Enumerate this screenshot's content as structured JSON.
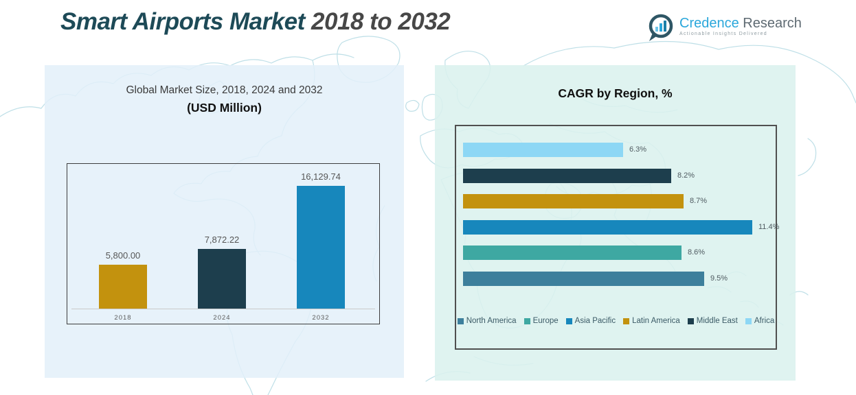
{
  "title": {
    "main": "Smart Airports Market",
    "range": "2018 to 2032"
  },
  "logo": {
    "brand_primary": "Credence",
    "brand_secondary": "Research",
    "tagline": "Actionable Insights Delivered"
  },
  "left_panel": {
    "title_line1": "Global Market Size, 2018, 2024 and 2032",
    "title_line2": "(USD Million)"
  },
  "right_panel": {
    "title": "CAGR by Region, %"
  },
  "colors": {
    "gold": "#c3920e",
    "dark_navy": "#1d3e4d",
    "blue": "#1787bc",
    "teal": "#3ea8a2",
    "steel_blue": "#3d7f9c",
    "light_blue": "#8dd7f5",
    "brand_cyan": "#2aa7db",
    "title_teal": "#1d4a57",
    "panel_left_bg": "#e3f0f9",
    "panel_right_bg": "#dbf1ee"
  },
  "chart_data": [
    {
      "type": "bar",
      "orientation": "vertical",
      "title": "Global Market Size, 2018, 2024 and 2032 (USD Million)",
      "categories": [
        "2018",
        "2024",
        "2032"
      ],
      "values": [
        5800.0,
        7872.22,
        16129.74
      ],
      "value_labels": [
        "5,800.00",
        "7,872.22",
        "16,129.74"
      ],
      "bar_colors": [
        "#c3920e",
        "#1d3e4d",
        "#1787bc"
      ],
      "xlabel": "",
      "ylabel": "USD Million",
      "ylim": [
        0,
        17500
      ],
      "grid": false,
      "legend_position": "none"
    },
    {
      "type": "bar",
      "orientation": "horizontal",
      "title": "CAGR by Region, %",
      "categories": [
        "Africa",
        "Middle East",
        "Latin America",
        "Asia Pacific",
        "Europe",
        "North America"
      ],
      "values": [
        6.3,
        8.2,
        8.7,
        11.4,
        8.6,
        9.5
      ],
      "value_labels": [
        "6.3%",
        "8.2%",
        "8.7%",
        "11.4%",
        "8.6%",
        "9.5%"
      ],
      "bar_colors": [
        "#8dd7f5",
        "#1d3e4d",
        "#c3920e",
        "#1787bc",
        "#3ea8a2",
        "#3d7f9c"
      ],
      "xlabel": "CAGR %",
      "ylabel": "",
      "xlim": [
        0,
        12.5
      ],
      "grid": false,
      "legend_position": "bottom",
      "legend": [
        {
          "label": "North America",
          "color": "#3d7f9c"
        },
        {
          "label": "Europe",
          "color": "#3ea8a2"
        },
        {
          "label": "Asia Pacific",
          "color": "#1787bc"
        },
        {
          "label": "Latin America",
          "color": "#c3920e"
        },
        {
          "label": "Middle East",
          "color": "#1d3e4d"
        },
        {
          "label": "Africa",
          "color": "#8dd7f5"
        }
      ]
    }
  ]
}
